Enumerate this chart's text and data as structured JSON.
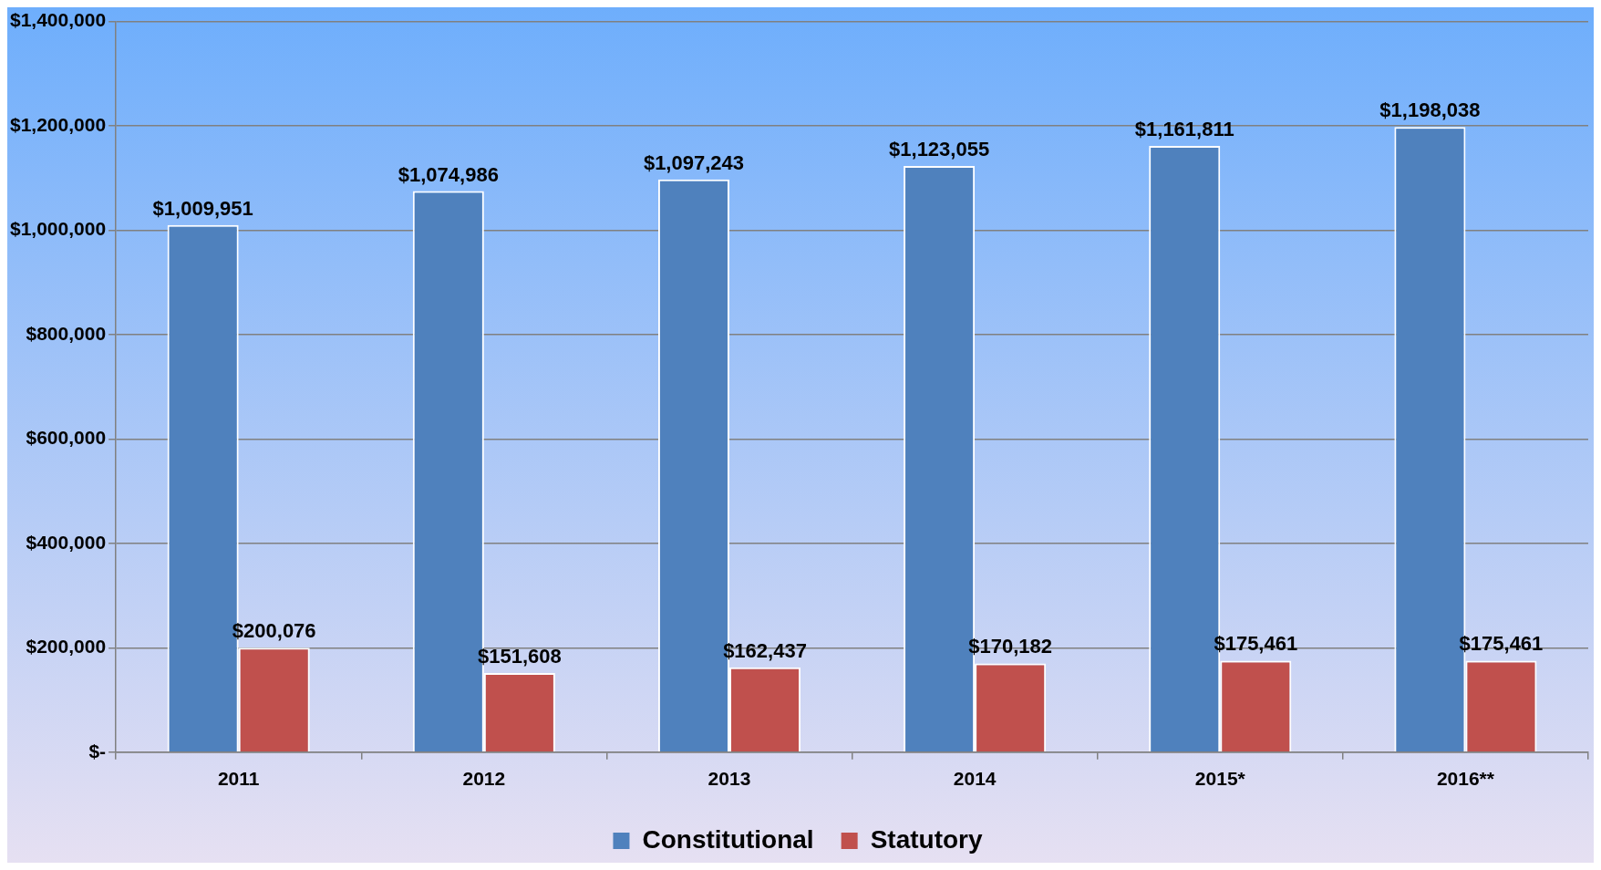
{
  "chart_data": {
    "type": "bar",
    "categories": [
      "2011",
      "2012",
      "2013",
      "2014",
      "2015*",
      "2016**"
    ],
    "series": [
      {
        "name": "Constitutional",
        "color": "#4f81bd",
        "values": [
          1009951,
          1074986,
          1097243,
          1123055,
          1161811,
          1198038
        ],
        "value_labels": [
          "$1,009,951",
          "$1,074,986",
          "$1,097,243",
          "$1,123,055",
          "$1,161,811",
          "$1,198,038"
        ]
      },
      {
        "name": "Statutory",
        "color": "#c0504d",
        "values": [
          200076,
          151608,
          162437,
          170182,
          175461,
          175461
        ],
        "value_labels": [
          "$200,076",
          "$151,608",
          "$162,437",
          "$170,182",
          "$175,461",
          "$175,461"
        ]
      }
    ],
    "ylim": [
      0,
      1400000
    ],
    "yticks": [
      {
        "value": 0,
        "label": "$-"
      },
      {
        "value": 200000,
        "label": "$200,000"
      },
      {
        "value": 400000,
        "label": "$400,000"
      },
      {
        "value": 600000,
        "label": "$600,000"
      },
      {
        "value": 800000,
        "label": "$800,000"
      },
      {
        "value": 1000000,
        "label": "$1,000,000"
      },
      {
        "value": 1200000,
        "label": "$1,200,000"
      },
      {
        "value": 1400000,
        "label": "$1,400,000"
      }
    ],
    "grid": "y",
    "legend": "bottom"
  }
}
